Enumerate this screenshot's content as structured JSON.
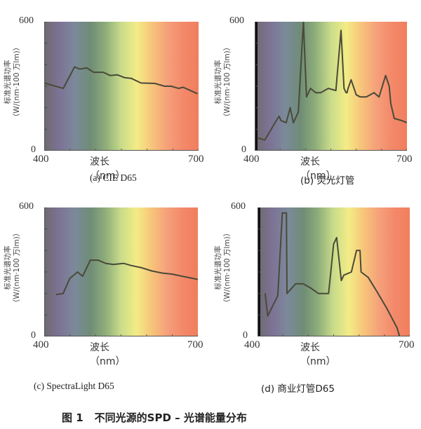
{
  "figure": {
    "number": "图 1",
    "title": "不同光源的SPD – 光谱能量分布"
  },
  "axes_common": {
    "ylabel_line1": "标准光谱功率",
    "ylabel_line2": "（W/(nm·100 万lm)）",
    "xlabel": "波长（nm）",
    "x_min_label": "400",
    "x_max_label": "700",
    "y_min_label": "0",
    "y_max_label": "600"
  },
  "panels": [
    {
      "id": "a",
      "caption": "(a) CIE D65"
    },
    {
      "id": "b",
      "caption": "(b) 荧光灯管"
    },
    {
      "id": "c",
      "caption": "(c) SpectraLight D65"
    },
    {
      "id": "d",
      "caption": "(d) 商业灯管D65"
    }
  ],
  "colors": {
    "curve": "#4a4a3a",
    "spectrum_stops": [
      "#6e6a6e",
      "#7d7396",
      "#7b8a9a",
      "#6f8c76",
      "#8fae7a",
      "#c9dc8a",
      "#f3ec86",
      "#f7c47a",
      "#f5a07a",
      "#f3896a",
      "#f07e5c"
    ]
  },
  "chart_data": [
    {
      "type": "line",
      "title": "(a) CIE D65",
      "xlabel": "波长（nm）",
      "ylabel": "标准光谱功率（W/(nm·100 万lm)）",
      "xlim": [
        400,
        700
      ],
      "ylim": [
        0,
        600
      ],
      "yticks": [
        0,
        100,
        200,
        300,
        400,
        500,
        600
      ],
      "xticks": [
        400,
        450,
        500,
        550,
        600,
        650,
        700
      ],
      "background": "visible spectrum gradient",
      "x": [
        400,
        437,
        459,
        469,
        483,
        496,
        515,
        528,
        542,
        556,
        569,
        588,
        615,
        634,
        647,
        661,
        670,
        698
      ],
      "values": [
        315,
        290,
        390,
        380,
        385,
        365,
        365,
        350,
        353,
        340,
        337,
        315,
        313,
        300,
        300,
        290,
        295,
        265
      ]
    },
    {
      "type": "line",
      "title": "(b) 荧光灯管",
      "xlabel": "波长（nm）",
      "ylabel": "标准光谱功率（W/(nm·100 万lm)）",
      "xlim": [
        400,
        700
      ],
      "ylim": [
        0,
        600
      ],
      "yticks": [
        0,
        100,
        200,
        300,
        400,
        500,
        600
      ],
      "xticks": [
        400,
        450,
        500,
        550,
        600,
        650,
        700
      ],
      "background": "visible spectrum gradient",
      "x": [
        405,
        420,
        440,
        448,
        452,
        462,
        470,
        476,
        480,
        486,
        496,
        502,
        506,
        508,
        510,
        520,
        530,
        545,
        560,
        570,
        576,
        580,
        582,
        584,
        590,
        600,
        604,
        608,
        620,
        635,
        645,
        658,
        665,
        668,
        675,
        690,
        700
      ],
      "values": [
        60,
        50,
        130,
        160,
        140,
        130,
        200,
        130,
        150,
        180,
        600,
        250,
        270,
        280,
        290,
        270,
        270,
        290,
        280,
        560,
        290,
        270,
        270,
        290,
        330,
        260,
        255,
        250,
        250,
        270,
        250,
        350,
        300,
        220,
        150,
        140,
        130
      ]
    },
    {
      "type": "line",
      "title": "(c) SpectraLight D65",
      "xlabel": "波长（nm）",
      "ylabel": "标准光谱功率（W/(nm·100 万lm)）",
      "xlim": [
        400,
        700
      ],
      "ylim": [
        0,
        600
      ],
      "yticks": [
        0,
        100,
        200,
        300,
        400,
        500,
        600
      ],
      "xticks": [
        400,
        450,
        500,
        550,
        600,
        650,
        700
      ],
      "background": "visible spectrum gradient",
      "x": [
        423,
        437,
        450,
        465,
        475,
        490,
        505,
        520,
        535,
        555,
        570,
        590,
        610,
        630,
        650,
        670,
        700
      ],
      "values": [
        195,
        200,
        270,
        300,
        280,
        355,
        355,
        340,
        335,
        340,
        330,
        320,
        305,
        295,
        290,
        280,
        265
      ]
    },
    {
      "type": "line",
      "title": "(d) 商业灯管D65",
      "xlabel": "波长（nm）",
      "ylabel": "标准光谱功率（W/(nm·100 万lm)）",
      "xlim": [
        400,
        700
      ],
      "ylim": [
        0,
        600
      ],
      "yticks": [
        0,
        100,
        200,
        300,
        400,
        500,
        600
      ],
      "xticks": [
        400,
        450,
        500,
        550,
        600,
        650,
        700
      ],
      "background": "visible spectrum gradient",
      "x": [
        415,
        420,
        440,
        449,
        450,
        457,
        458,
        462,
        475,
        490,
        505,
        520,
        540,
        550,
        556,
        565,
        570,
        585,
        595,
        602,
        604,
        618,
        635,
        655,
        675,
        680
      ],
      "values": [
        200,
        95,
        190,
        575,
        575,
        575,
        200,
        210,
        245,
        245,
        225,
        200,
        200,
        430,
        460,
        260,
        285,
        300,
        400,
        400,
        300,
        275,
        210,
        130,
        40,
        0
      ]
    }
  ]
}
